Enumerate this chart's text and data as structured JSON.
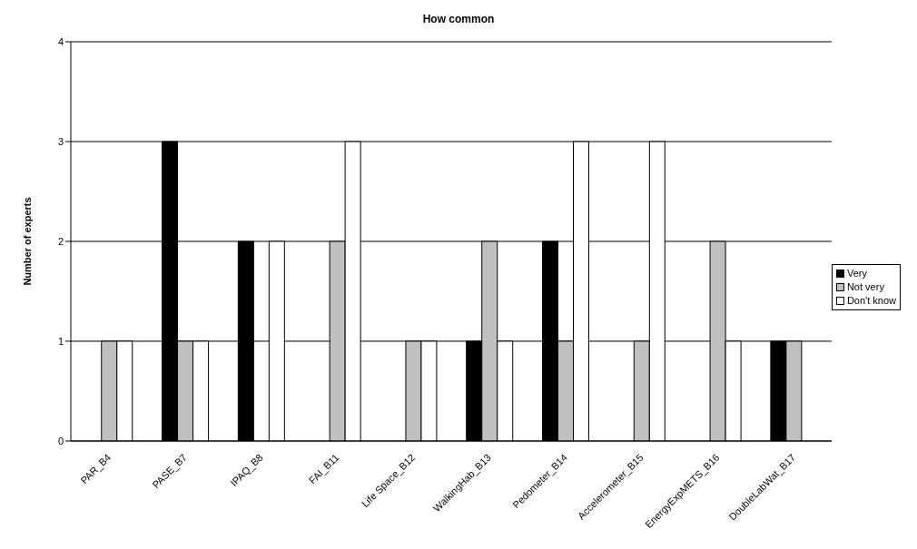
{
  "chart_data": {
    "type": "bar",
    "title": "How common",
    "ylabel": "Number of experts",
    "categories": [
      "PAR_B4",
      "PASE_B7",
      "IPAQ_B8",
      "FAI_B11",
      "Life Space_B12",
      "WalkingHab_B13",
      "Pedometer_B14",
      "Accelerometer_B15",
      "EnergyExpMETS_B16",
      "DoubleLabWat_B17"
    ],
    "series": [
      {
        "name": "Very",
        "color": "#000000",
        "values": [
          0,
          3,
          2,
          0,
          0,
          1,
          2,
          0,
          0,
          1
        ]
      },
      {
        "name": "Not very",
        "color": "#c0c0c0",
        "values": [
          1,
          1,
          0,
          2,
          1,
          2,
          1,
          1,
          2,
          1
        ]
      },
      {
        "name": "Don't know",
        "color": "#ffffff",
        "values": [
          1,
          1,
          2,
          3,
          1,
          1,
          3,
          3,
          1,
          0
        ]
      }
    ],
    "ylim": [
      0,
      4
    ],
    "yticks": [
      0,
      1,
      2,
      3,
      4
    ],
    "grid": "y",
    "legend": "right"
  }
}
